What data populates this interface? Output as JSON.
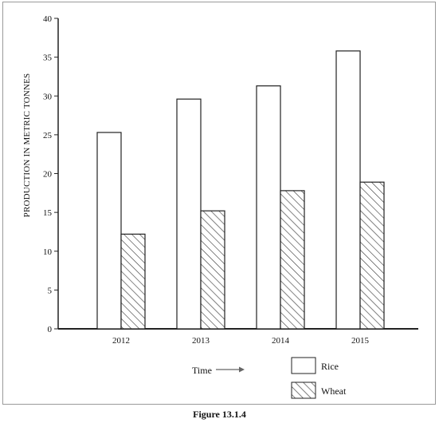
{
  "caption": "Figure 13.1.4",
  "chart_data": {
    "type": "bar",
    "categories": [
      "2012",
      "2013",
      "2014",
      "2015"
    ],
    "series": [
      {
        "name": "Rice",
        "values": [
          25.3,
          29.6,
          31.3,
          35.8
        ],
        "style": "hollow",
        "color": "#ffffff"
      },
      {
        "name": "Wheat",
        "values": [
          12.2,
          15.2,
          17.8,
          18.9
        ],
        "style": "diagonal-hatch",
        "color": "#ffffff"
      }
    ],
    "ylabel": "PRODUCTION IN METRIC TONNES",
    "xlabel": "Time",
    "ylim": [
      0,
      40
    ],
    "yticks": [
      0,
      5,
      10,
      15,
      20,
      25,
      30,
      35,
      40
    ],
    "grid": false,
    "legend_position": "bottom-right",
    "stroke_color": "#222222"
  }
}
